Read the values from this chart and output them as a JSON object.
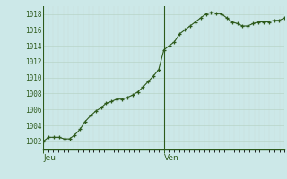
{
  "background_color": "#cce8e8",
  "plot_bg_color": "#cce8e8",
  "line_color": "#2d5a1b",
  "marker_color": "#2d5a1b",
  "grid_major_color": "#b8d4c8",
  "grid_minor_color": "#c8dcd8",
  "axis_color": "#2d5a1b",
  "tick_label_color": "#2d5a1b",
  "ylim": [
    1001.0,
    1019.0
  ],
  "yticks": [
    1002,
    1004,
    1006,
    1008,
    1010,
    1012,
    1014,
    1016,
    1018
  ],
  "x_day_labels": [
    "Jeu",
    "Ven"
  ],
  "values": [
    1002.0,
    1002.5,
    1002.5,
    1002.5,
    1002.3,
    1002.3,
    1002.8,
    1003.5,
    1004.5,
    1005.2,
    1005.8,
    1006.2,
    1006.8,
    1007.0,
    1007.3,
    1007.3,
    1007.5,
    1007.8,
    1008.2,
    1008.8,
    1009.5,
    1010.2,
    1011.0,
    1013.5,
    1014.0,
    1014.5,
    1015.5,
    1016.0,
    1016.5,
    1017.0,
    1017.5,
    1018.0,
    1018.2,
    1018.1,
    1018.0,
    1017.5,
    1017.0,
    1016.8,
    1016.5,
    1016.5,
    1016.8,
    1017.0,
    1017.0,
    1017.0,
    1017.2,
    1017.2,
    1017.5
  ],
  "n_total_hours": 48,
  "ven_hour": 24
}
